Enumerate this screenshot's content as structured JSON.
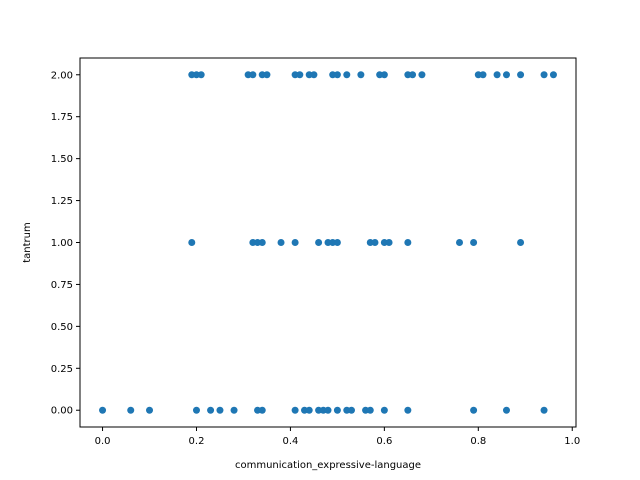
{
  "chart_data": {
    "type": "scatter",
    "title": "",
    "xlabel": "communication_expressive-language",
    "ylabel": "tantrum",
    "xlim": [
      -0.048,
      1.008
    ],
    "ylim": [
      -0.1,
      2.1
    ],
    "xticks": [
      0.0,
      0.2,
      0.4,
      0.6,
      0.8,
      1.0
    ],
    "xtick_labels": [
      "0.0",
      "0.2",
      "0.4",
      "0.6",
      "0.8",
      "1.0"
    ],
    "yticks": [
      0.0,
      0.25,
      0.5,
      0.75,
      1.0,
      1.25,
      1.5,
      1.75,
      2.0
    ],
    "ytick_labels": [
      "0.00",
      "0.25",
      "0.50",
      "0.75",
      "1.00",
      "1.25",
      "1.50",
      "1.75",
      "2.00"
    ],
    "grid": false,
    "marker_color": "#1f77b4",
    "series": [
      {
        "x": [
          0.19,
          0.2,
          0.21,
          0.31,
          0.32,
          0.34,
          0.35,
          0.41,
          0.42,
          0.44,
          0.45,
          0.49,
          0.5,
          0.52,
          0.55,
          0.59,
          0.6,
          0.65,
          0.66,
          0.68,
          0.8,
          0.81,
          0.84,
          0.86,
          0.89,
          0.94,
          0.96,
          0.19,
          0.32,
          0.33,
          0.34,
          0.38,
          0.41,
          0.46,
          0.48,
          0.49,
          0.5,
          0.57,
          0.58,
          0.6,
          0.61,
          0.65,
          0.76,
          0.79,
          0.89,
          0.0,
          0.06,
          0.1,
          0.2,
          0.23,
          0.25,
          0.28,
          0.33,
          0.34,
          0.41,
          0.43,
          0.44,
          0.46,
          0.47,
          0.48,
          0.5,
          0.52,
          0.53,
          0.56,
          0.57,
          0.6,
          0.65,
          0.79,
          0.86,
          0.94
        ],
        "y": [
          2,
          2,
          2,
          2,
          2,
          2,
          2,
          2,
          2,
          2,
          2,
          2,
          2,
          2,
          2,
          2,
          2,
          2,
          2,
          2,
          2,
          2,
          2,
          2,
          2,
          2,
          2,
          1,
          1,
          1,
          1,
          1,
          1,
          1,
          1,
          1,
          1,
          1,
          1,
          1,
          1,
          1,
          1,
          1,
          1,
          0,
          0,
          0,
          0,
          0,
          0,
          0,
          0,
          0,
          0,
          0,
          0,
          0,
          0,
          0,
          0,
          0,
          0,
          0,
          0,
          0,
          0,
          0,
          0,
          0
        ]
      }
    ]
  }
}
